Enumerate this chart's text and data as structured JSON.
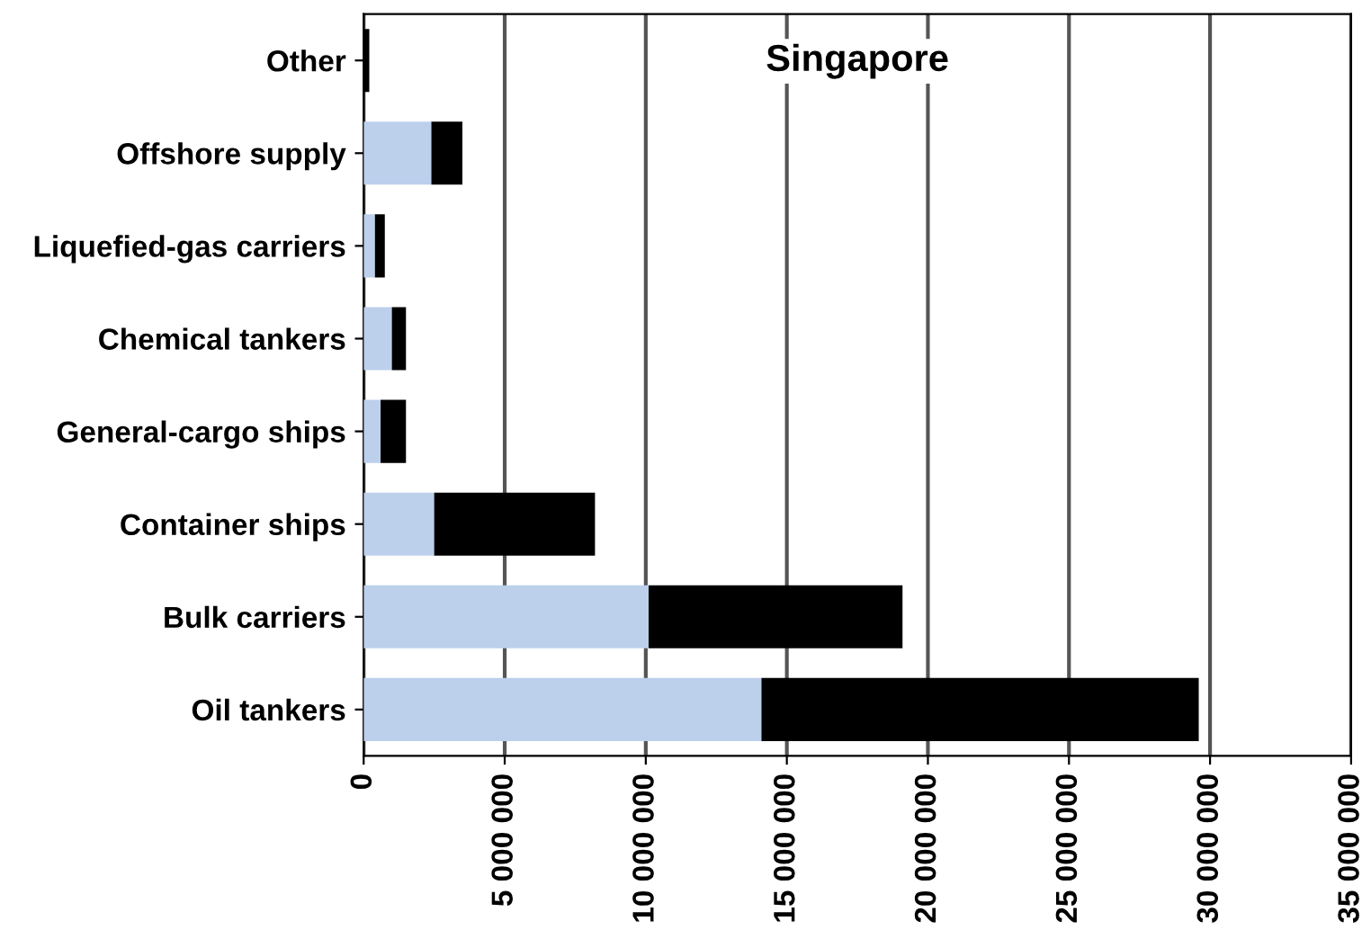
{
  "chart_data": {
    "type": "bar",
    "orientation": "horizontal",
    "stacked": true,
    "title": "Singapore",
    "categories": [
      "Other",
      "Offshore supply",
      "Liquefied-gas carriers",
      "Chemical tankers",
      "General-cargo ships",
      "Container ships",
      "Bulk carriers",
      "Oil tankers"
    ],
    "series": [
      {
        "color": "#bcd0ec",
        "values": [
          0,
          2400000,
          400000,
          1000000,
          600000,
          2500000,
          10100000,
          14100000
        ]
      },
      {
        "color": "#000000",
        "values": [
          200000,
          1100000,
          350000,
          500000,
          900000,
          5700000,
          9000000,
          15500000
        ]
      }
    ],
    "xlim": [
      0,
      35000000
    ],
    "xticks": [
      {
        "value": 0,
        "label": "0"
      },
      {
        "value": 5000000,
        "label": "5 000 000"
      },
      {
        "value": 10000000,
        "label": "10 000 000"
      },
      {
        "value": 15000000,
        "label": "15 000 000"
      },
      {
        "value": 20000000,
        "label": "20 000 000"
      },
      {
        "value": 25000000,
        "label": "25 000 000"
      },
      {
        "value": 30000000,
        "label": "30 000 000"
      },
      {
        "value": 35000000,
        "label": "35 000 000"
      }
    ],
    "grid": "x",
    "legend": false
  }
}
